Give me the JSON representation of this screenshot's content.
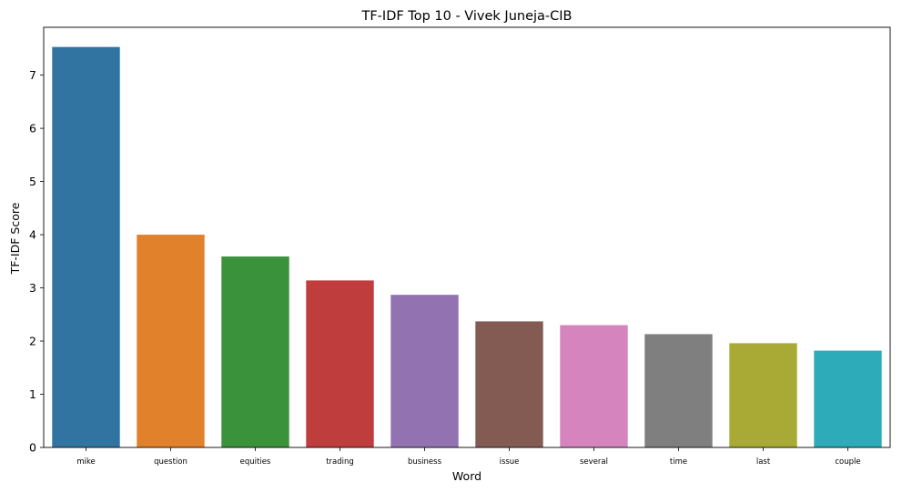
{
  "chart_data": {
    "type": "bar",
    "title": "TF-IDF Top 10 - Vivek Juneja-CIB",
    "xlabel": "Word",
    "ylabel": "TF-IDF Score",
    "categories": [
      "mike",
      "question",
      "equities",
      "trading",
      "business",
      "issue",
      "several",
      "time",
      "last",
      "couple"
    ],
    "values": [
      7.53,
      4.0,
      3.59,
      3.14,
      2.87,
      2.37,
      2.3,
      2.13,
      1.96,
      1.82
    ],
    "colors": [
      "#3274a1",
      "#e1812c",
      "#3a923a",
      "#c03d3e",
      "#9372b2",
      "#845b53",
      "#d684bd",
      "#7f7f7f",
      "#a9aa35",
      "#2eabb8"
    ],
    "ylim": [
      0,
      7.9
    ],
    "yticks": [
      0,
      1,
      2,
      3,
      4,
      5,
      6,
      7
    ],
    "grid": false
  }
}
